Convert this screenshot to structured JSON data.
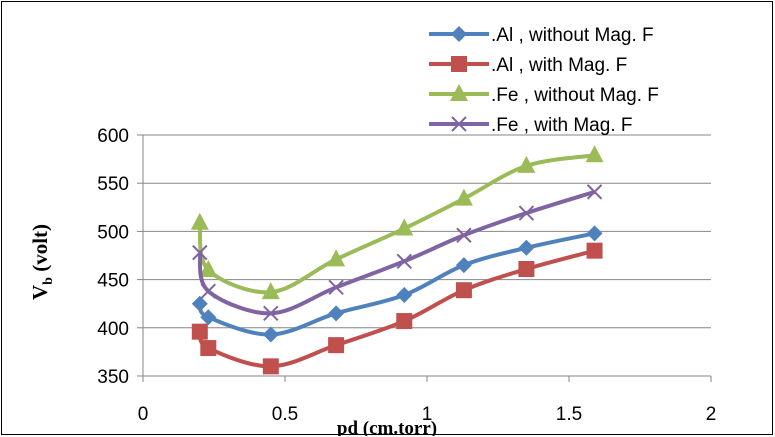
{
  "chart_data": {
    "type": "line",
    "xlabel": "pd (cm.torr)",
    "ylabel_main": "V",
    "ylabel_sub": "b",
    "ylabel_rest": " (volt)",
    "xlim": [
      0,
      2
    ],
    "ylim": [
      350,
      600
    ],
    "xticks": [
      0,
      0.5,
      1,
      1.5,
      2
    ],
    "xtick_labels": [
      "0",
      "0.5",
      "1",
      "1.5",
      "2"
    ],
    "yticks": [
      350,
      400,
      450,
      500,
      550,
      600
    ],
    "ytick_labels": [
      "350",
      "400",
      "450",
      "500",
      "550",
      "600"
    ],
    "grid": "horizontal",
    "legend_position": "top-right",
    "series": [
      {
        "name": ".Al , without Mag. F",
        "color": "#4F81BD",
        "marker": "diamond",
        "x": [
          0.2,
          0.23,
          0.45,
          0.68,
          0.92,
          1.13,
          1.35,
          1.59
        ],
        "y": [
          425,
          411,
          393,
          415,
          434,
          465,
          483,
          498
        ]
      },
      {
        "name": ".Al , with Mag. F",
        "color": "#C0504D",
        "marker": "square",
        "x": [
          0.2,
          0.23,
          0.45,
          0.68,
          0.92,
          1.13,
          1.35,
          1.59
        ],
        "y": [
          396,
          379,
          360,
          382,
          407,
          439,
          461,
          480
        ]
      },
      {
        "name": ".Fe , without Mag. F",
        "color": "#9BBB59",
        "marker": "triangle",
        "x": [
          0.2,
          0.23,
          0.45,
          0.68,
          0.92,
          1.13,
          1.35,
          1.59
        ],
        "y": [
          509,
          460,
          437,
          471,
          503,
          534,
          568,
          579
        ]
      },
      {
        "name": ".Fe , with Mag. F",
        "color": "#8064A2",
        "marker": "x",
        "x": [
          0.2,
          0.23,
          0.45,
          0.68,
          0.92,
          1.13,
          1.35,
          1.59
        ],
        "y": [
          478,
          438,
          415,
          442,
          469,
          496,
          519,
          541
        ]
      }
    ]
  }
}
